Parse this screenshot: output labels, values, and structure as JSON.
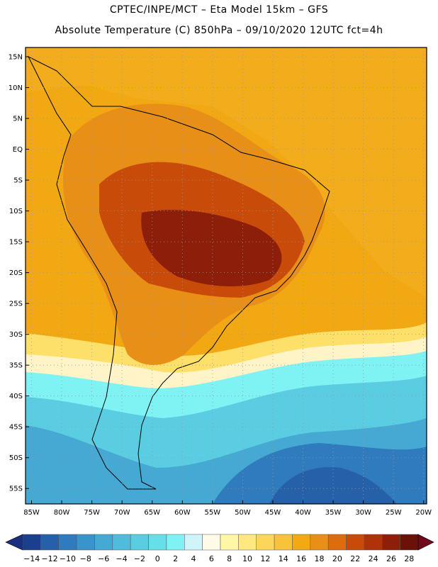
{
  "header": {
    "line1": "CPTEC/INPE/MCT –  Eta Model 15km – GFS",
    "line2": "Absolute Temperature (C) 850hPa – 09/10/2020 12UTC fct=4h"
  },
  "map": {
    "lat_labels": [
      "15N",
      "10N",
      "5N",
      "EQ",
      "5S",
      "10S",
      "15S",
      "20S",
      "25S",
      "30S",
      "35S",
      "40S",
      "45S",
      "50S",
      "55S"
    ],
    "lat_values": [
      15,
      10,
      5,
      0,
      -5,
      -10,
      -15,
      -20,
      -25,
      -30,
      -35,
      -40,
      -45,
      -50,
      -55
    ],
    "lon_labels": [
      "85W",
      "80W",
      "75W",
      "70W",
      "65W",
      "60W",
      "55W",
      "50W",
      "45W",
      "40W",
      "35W",
      "30W",
      "25W",
      "20W"
    ],
    "lon_values": [
      -85,
      -80,
      -75,
      -70,
      -65,
      -60,
      -55,
      -50,
      -45,
      -40,
      -35,
      -30,
      -25,
      -20
    ],
    "lon_range": [
      -86,
      -19.5
    ],
    "lat_range": [
      -57.5,
      16.5
    ],
    "background_color": "#f2a813"
  },
  "legend": {
    "labels": [
      "-14",
      "-12",
      "-10",
      "-8",
      "-6",
      "-4",
      "-2",
      "0",
      "2",
      "4",
      "6",
      "8",
      "10",
      "12",
      "14",
      "16",
      "18",
      "20",
      "22",
      "24",
      "26",
      "28"
    ],
    "colors": [
      "#1a3f8c",
      "#2560a8",
      "#2f7bbd",
      "#3a93c9",
      "#45a9d3",
      "#4fbcdc",
      "#5acde2",
      "#67dfe9",
      "#7ff2f4",
      "#cff5fb",
      "#fffbe6",
      "#fff6a8",
      "#ffe880",
      "#fcd65a",
      "#f8c23a",
      "#f2aa12",
      "#e88f18",
      "#dd6c0e",
      "#c94b0a",
      "#b0320a",
      "#8c1e0a",
      "#6b1208"
    ],
    "low_end_color": "#1b2f80",
    "high_end_color": "#6e0a1a"
  }
}
